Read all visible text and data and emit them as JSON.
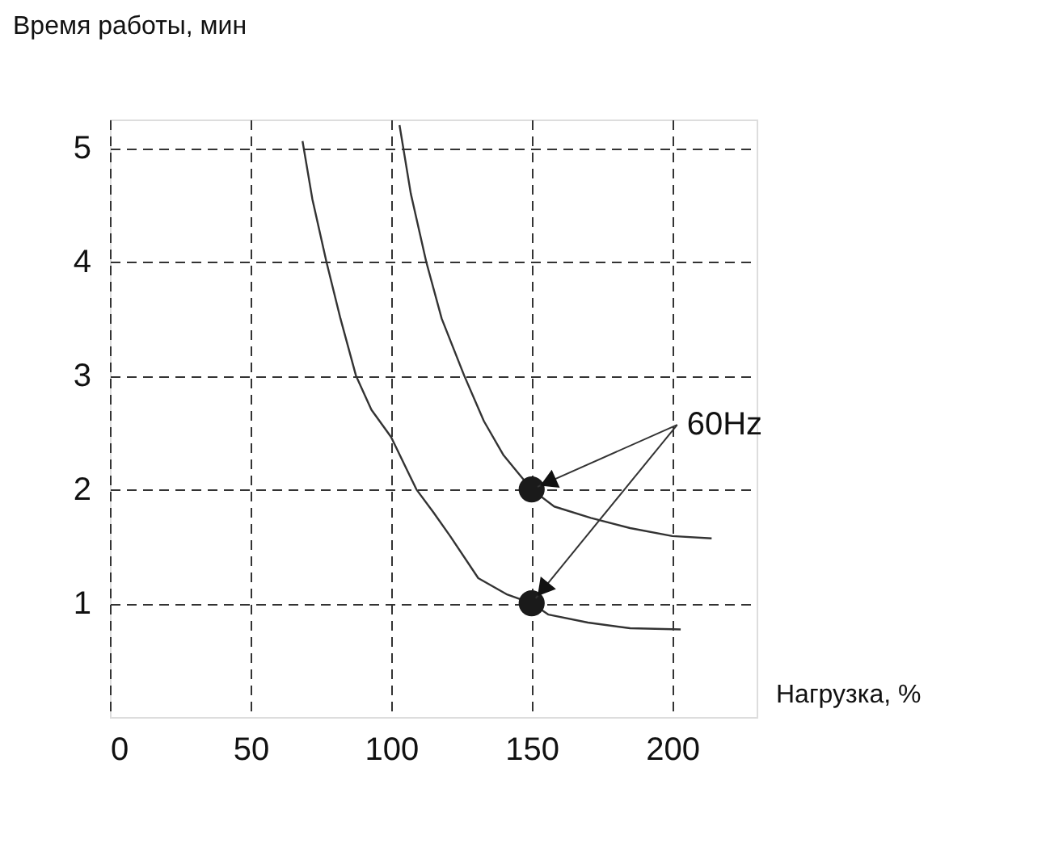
{
  "chart_data": {
    "type": "line",
    "ylabel": "Время работы, мин",
    "xlabel": "Нагрузка, %",
    "xlim": [
      0,
      230
    ],
    "xticks": [
      0,
      50,
      100,
      150,
      200
    ],
    "ylim": [
      0,
      5.25
    ],
    "yticks": [
      1,
      2,
      3,
      4,
      5
    ],
    "grid": true,
    "line_style": "solid",
    "marker": "none",
    "annotations": [
      {
        "text": "60Hz",
        "x": 150,
        "y": 2
      }
    ],
    "series": [
      {
        "color": "#333333",
        "x": [
          103,
          107,
          112.5,
          118,
          126,
          133,
          140,
          145,
          150,
          158,
          171,
          185,
          200,
          214
        ],
        "values": [
          5.2,
          4.6,
          4.0,
          3.5,
          3.0,
          2.6,
          2.3,
          2.15,
          2.0,
          1.85,
          1.75,
          1.66,
          1.59,
          1.57
        ]
      },
      {
        "color": "#333333",
        "x": [
          68.5,
          72,
          77,
          82,
          87.5,
          93,
          100,
          109,
          115,
          121,
          131,
          141,
          150,
          156,
          170,
          185,
          203
        ],
        "values": [
          5.06,
          4.55,
          4.0,
          3.5,
          3.0,
          2.7,
          2.46,
          2.0,
          1.8,
          1.59,
          1.22,
          1.08,
          1.0,
          0.9,
          0.83,
          0.78,
          0.77
        ]
      },
      {
        "type": "scatter",
        "marker": "circle",
        "color": "#1a1a1a",
        "x": [
          150,
          150
        ],
        "values": [
          2,
          1
        ]
      }
    ]
  }
}
